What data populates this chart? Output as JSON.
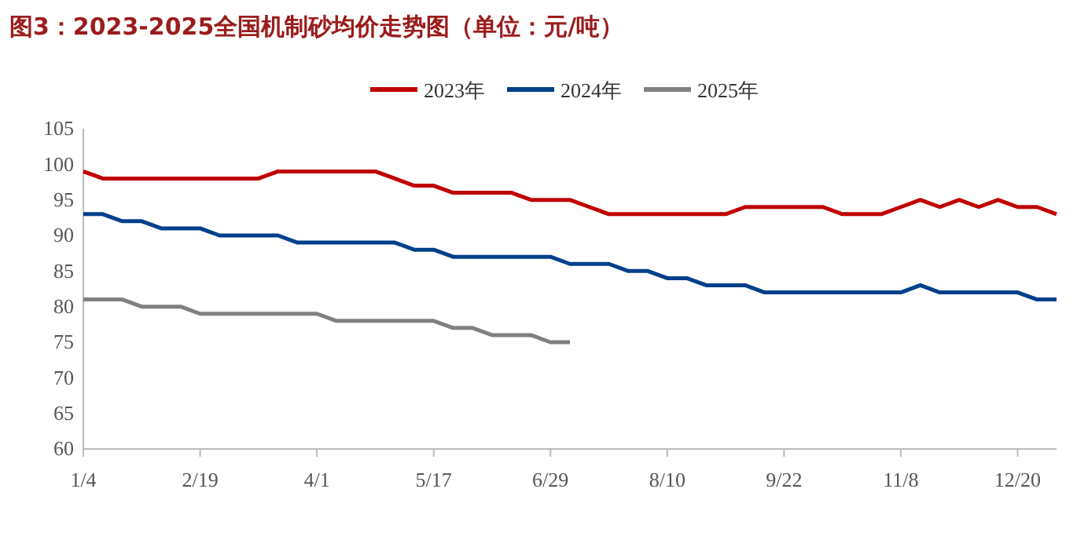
{
  "chart_data": {
    "type": "line",
    "title": "图3：2023-2025全国机制砂均价走势图（单位：元/吨）",
    "categories": [
      "1/4",
      null,
      null,
      null,
      null,
      null,
      "2/19",
      null,
      null,
      null,
      null,
      null,
      "4/1",
      null,
      null,
      null,
      null,
      null,
      "5/17",
      null,
      null,
      null,
      null,
      null,
      "6/29",
      null,
      null,
      null,
      null,
      null,
      "8/10",
      null,
      null,
      null,
      null,
      null,
      "9/22",
      null,
      null,
      null,
      null,
      null,
      "11/8",
      null,
      null,
      null,
      null,
      null,
      "12/20",
      null,
      null
    ],
    "series": [
      {
        "name": "2023年",
        "color": "#c00000",
        "values": [
          99,
          98,
          98,
          98,
          98,
          98,
          98,
          98,
          98,
          98,
          99,
          99,
          99,
          99,
          99,
          99,
          98,
          97,
          97,
          96,
          96,
          96,
          96,
          95,
          95,
          95,
          94,
          93,
          93,
          93,
          93,
          93,
          93,
          93,
          94,
          94,
          94,
          94,
          94,
          93,
          93,
          93,
          94,
          95,
          94,
          95,
          94,
          95,
          94,
          94,
          93
        ]
      },
      {
        "name": "2024年",
        "color": "#003f8a",
        "values": [
          93,
          93,
          92,
          92,
          91,
          91,
          91,
          90,
          90,
          90,
          90,
          89,
          89,
          89,
          89,
          89,
          89,
          88,
          88,
          87,
          87,
          87,
          87,
          87,
          87,
          86,
          86,
          86,
          85,
          85,
          84,
          84,
          83,
          83,
          83,
          82,
          82,
          82,
          82,
          82,
          82,
          82,
          82,
          83,
          82,
          82,
          82,
          82,
          82,
          81,
          81
        ]
      },
      {
        "name": "2025年",
        "color": "#808080",
        "values": [
          81,
          81,
          81,
          80,
          80,
          80,
          79,
          79,
          79,
          79,
          79,
          79,
          79,
          78,
          78,
          78,
          78,
          78,
          78,
          77,
          77,
          76,
          76,
          76,
          75,
          75,
          null,
          null,
          null,
          null,
          null,
          null,
          null,
          null,
          null,
          null,
          null,
          null,
          null,
          null,
          null,
          null,
          null,
          null,
          null,
          null,
          null,
          null,
          null,
          null,
          null
        ]
      }
    ],
    "ylim": [
      60,
      105
    ],
    "yticks": [
      60,
      65,
      70,
      75,
      80,
      85,
      90,
      95,
      100,
      105
    ],
    "grid": false,
    "legend": "top",
    "marker": "none",
    "line_style": "solid"
  }
}
